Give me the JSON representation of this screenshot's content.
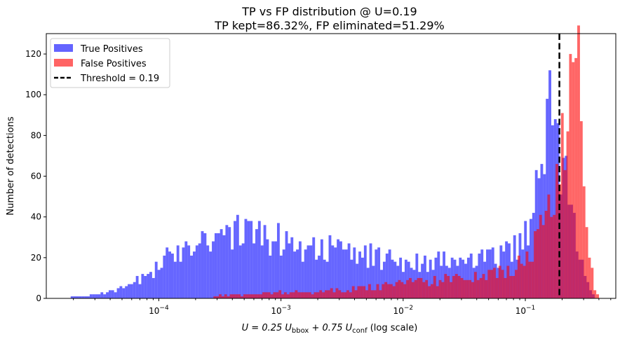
{
  "chart_data": {
    "type": "histogram",
    "title_lines": [
      "TP vs FP distribution @ U=0.19",
      "TP kept=86.32%, FP eliminated=51.29%"
    ],
    "xlabel": {
      "prefix": "U = 0.25 U",
      "sub1": "bbox",
      "mid": " + 0.75 U",
      "sub2": "conf",
      "suffix": "  (log scale)"
    },
    "ylabel": "Number of detections",
    "x_scale": "log",
    "xlim": [
      1.2e-05,
      0.55
    ],
    "ylim": [
      0,
      130
    ],
    "x_ticks": [
      {
        "value": 0.0001,
        "base": "10",
        "exp": "−4"
      },
      {
        "value": 0.001,
        "base": "10",
        "exp": "−3"
      },
      {
        "value": 0.01,
        "base": "10",
        "exp": "−2"
      },
      {
        "value": 0.1,
        "base": "10",
        "exp": "−1"
      }
    ],
    "y_ticks": [
      0,
      20,
      40,
      60,
      80,
      100,
      120
    ],
    "bins_per_decade": 45,
    "tp_series": {
      "name": "True Positives",
      "color": "#0000ff",
      "start": 1.9e-05,
      "anchors": [
        [
          1.9e-05,
          1
        ],
        [
          2.5e-05,
          1
        ],
        [
          3e-05,
          2
        ],
        [
          4e-05,
          3
        ],
        [
          5e-05,
          5
        ],
        [
          6e-05,
          7
        ],
        [
          8e-05,
          11
        ],
        [
          0.0001,
          16
        ],
        [
          0.00015,
          25
        ],
        [
          0.0002,
          29
        ],
        [
          0.0003,
          32
        ],
        [
          0.0005,
          32
        ],
        [
          0.0008,
          30
        ],
        [
          0.0012,
          27
        ],
        [
          0.002,
          25
        ],
        [
          0.003,
          23
        ],
        [
          0.005,
          21
        ],
        [
          0.008,
          19
        ],
        [
          0.012,
          18
        ],
        [
          0.02,
          18
        ],
        [
          0.03,
          18
        ],
        [
          0.05,
          19
        ],
        [
          0.07,
          22
        ],
        [
          0.09,
          28
        ],
        [
          0.11,
          38
        ],
        [
          0.13,
          55
        ],
        [
          0.15,
          85
        ],
        [
          0.17,
          110
        ],
        [
          0.19,
          60
        ],
        [
          0.21,
          60
        ],
        [
          0.24,
          40
        ],
        [
          0.27,
          28
        ],
        [
          0.3,
          12
        ],
        [
          0.34,
          4
        ],
        [
          0.37,
          1
        ]
      ]
    },
    "fp_series": {
      "name": "False Positives",
      "color": "#ff0000",
      "start": 0.00028,
      "anchors": [
        [
          0.00028,
          1
        ],
        [
          0.0005,
          2
        ],
        [
          0.001,
          3
        ],
        [
          0.002,
          3
        ],
        [
          0.004,
          5
        ],
        [
          0.007,
          6
        ],
        [
          0.012,
          8
        ],
        [
          0.02,
          9
        ],
        [
          0.03,
          10
        ],
        [
          0.05,
          11
        ],
        [
          0.07,
          14
        ],
        [
          0.1,
          19
        ],
        [
          0.13,
          30
        ],
        [
          0.16,
          45
        ],
        [
          0.19,
          65
        ],
        [
          0.21,
          82
        ],
        [
          0.23,
          105
        ],
        [
          0.25,
          124
        ],
        [
          0.28,
          100
        ],
        [
          0.31,
          55
        ],
        [
          0.34,
          20
        ],
        [
          0.37,
          6
        ],
        [
          0.4,
          1
        ]
      ]
    },
    "threshold": {
      "value": 0.19,
      "label": "Threshold = 0.19",
      "color": "#000000"
    },
    "legend": {
      "position": "top-left",
      "entries": [
        "True Positives",
        "False Positives",
        "Threshold = 0.19"
      ]
    }
  }
}
